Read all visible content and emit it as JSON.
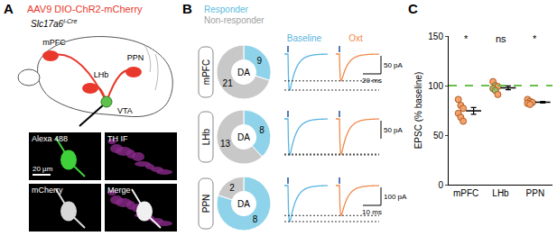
{
  "panel_labels": [
    "A",
    "B",
    "C"
  ],
  "panel_a": {
    "title": "AAV9 DIO-ChR2-mCherry",
    "mouse_line": "Slc17a6",
    "mouse_line_sup": "i-Cre",
    "regions": [
      "mPFC",
      "LHb",
      "PPN",
      "VTA"
    ],
    "images": [
      "Alexa 488",
      "TH IF",
      "mCherry",
      "Merge"
    ],
    "scale_bar": "20 µm"
  },
  "panel_b": {
    "trace_headers": [
      "Baseline",
      "Oxt"
    ],
    "scale_bars": [
      {
        "amplitude": "50 pA",
        "time": "20 ms"
      },
      {
        "amplitude": "50 pA"
      },
      {
        "amplitude": "100 pA",
        "time": "10 ms"
      }
    ]
  },
  "chart_data": [
    {
      "type": "pie",
      "title": "mPFC",
      "center": "DA",
      "categories": [
        "Responder",
        "Non-responder"
      ],
      "values": [
        9,
        21
      ],
      "colors": [
        "#8fd3ea",
        "#c8c8c8"
      ],
      "data_labels": true
    },
    {
      "type": "pie",
      "title": "LHb",
      "center": "DA",
      "categories": [
        "Responder",
        "Non-responder"
      ],
      "values": [
        8,
        13
      ],
      "colors": [
        "#8fd3ea",
        "#c8c8c8"
      ],
      "data_labels": true
    },
    {
      "type": "pie",
      "title": "PPN",
      "center": "DA",
      "categories": [
        "Responder",
        "Non-responder"
      ],
      "values": [
        8,
        2
      ],
      "colors": [
        "#8fd3ea",
        "#c8c8c8"
      ],
      "data_labels": true
    },
    {
      "type": "scatter",
      "ylabel": "EPSC (% baseline)",
      "categories": [
        "mPFC",
        "LHb",
        "PPN"
      ],
      "ylim": [
        0,
        150
      ],
      "yticks": [
        0,
        50,
        100,
        150
      ],
      "baseline": 100,
      "baseline_color": "#6abf4b",
      "significance": [
        "*",
        "ns",
        "*"
      ],
      "groups": [
        {
          "values": [
            86,
            80,
            77,
            72,
            68,
            64
          ],
          "colors": [
            "#f4a26b",
            "#f4a26b",
            "#f4a26b",
            "#f4a26b",
            "#f4a26b",
            "#f4a26b"
          ],
          "mean": 74.5,
          "sem": 3.4
        },
        {
          "values": [
            104,
            100,
            99,
            97,
            95,
            91
          ],
          "colors": [
            "#f4a26b",
            "#8fbf6a",
            "#f4a26b",
            "#8fbf6a",
            "#8fbf6a",
            "#f4a26b"
          ],
          "mean": 97.7,
          "sem": 1.9
        },
        {
          "values": [
            86,
            84,
            83,
            82,
            81
          ],
          "colors": [
            "#f4a26b",
            "#f4a26b",
            "#f4a26b",
            "#f4a26b",
            "#f4a26b"
          ],
          "mean": 83.2,
          "sem": 0.9
        }
      ],
      "grid": false
    }
  ]
}
